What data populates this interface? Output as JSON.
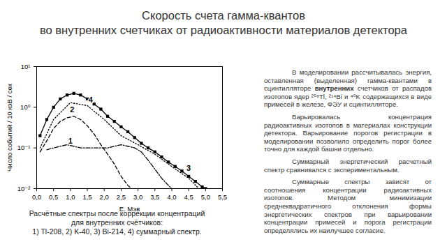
{
  "slide": {
    "title": [
      "Скорость счета гамма-квантов",
      "во внутренних счетчиках от радиоактивности материалов детектора"
    ],
    "paragraphs": [
      [
        {
          "text": "В моделировании рассчитывалась энергия, оставленная (выделенная) гамма-квантами в сцинтилляторе "
        },
        {
          "text": "внутренних",
          "bold": true
        },
        {
          "text": " счетчиков от распадов изотопов ядер ²⁰⁸Tl, ²¹⁴Bi и ⁴⁰K содержащихся в виде примесей в железе, ФЭУ и сцинтилляторе."
        }
      ],
      [
        {
          "text": "Варьировалась концентрация радиоактивных изотопов в материалах конструкции детектора. Варьирование порогов регистрации в моделировании позволило определить порог более точно для каждой башни отдельно."
        }
      ],
      [
        {
          "text": "Суммарный энергетический расчетный спектр сравнивался с экспериментальным."
        }
      ],
      [
        {
          "text": "Суммарные спектры зависят от соотношения концентрации радиоактивных изотопов. Методом минимизации среднеквадратичного отклонения формы энергетических спектров при варьировании концентрации примесей и порога регистрации определялись их наилучшее согласие."
        }
      ]
    ],
    "caption": [
      "Расчётные спектры после коррекции концентраций",
      "для внутренних счётчиков:",
      "1) Tl-208, 2) K-40, 3) Bi-214, 4) суммарный спектр."
    ]
  },
  "chart_data": {
    "type": "line",
    "x_label": "E. Мэв",
    "y_label": "Число событий / 10 кэВ / сек",
    "log": "y",
    "grid": false,
    "xlim": [
      0,
      5.5
    ],
    "xticks": [
      {
        "value": 0,
        "label": "0,0"
      },
      {
        "value": 0.5,
        "label": "0,5"
      },
      {
        "value": 1,
        "label": "1,0"
      },
      {
        "value": 1.5,
        "label": "1,5"
      },
      {
        "value": 2,
        "label": "2,0"
      },
      {
        "value": 2.5,
        "label": "2,5"
      },
      {
        "value": 3,
        "label": "3,0"
      },
      {
        "value": 3.5,
        "label": "3,5"
      },
      {
        "value": 4,
        "label": "4,0"
      },
      {
        "value": 4.5,
        "label": "4,5"
      },
      {
        "value": 5,
        "label": "5,0"
      },
      {
        "value": 5.5,
        "label": "5,5"
      }
    ],
    "ylim": [
      0.01,
      10
    ],
    "yticks": [
      {
        "value": 0.01,
        "label": "10⁻²"
      },
      {
        "value": 0.1,
        "label": "10⁻¹"
      },
      {
        "value": 1,
        "label": "10⁰"
      },
      {
        "value": 10,
        "label": "10¹"
      }
    ],
    "series": [
      {
        "name": "1",
        "color": "#000000",
        "line_style": "dashdot",
        "label_x": 1.0,
        "label_y": 0.145,
        "x": [
          0.3,
          0.5,
          0.7,
          0.9,
          1.1,
          1.3,
          1.5,
          1.7,
          1.9,
          2.1,
          2.3,
          2.5,
          2.7,
          2.9,
          3.1,
          3.3,
          3.5,
          3.7,
          3.9,
          4.0
        ],
        "values": [
          0.09,
          0.1,
          0.11,
          0.12,
          0.11,
          0.1,
          0.1,
          0.1,
          0.1,
          0.1,
          0.11,
          0.12,
          0.11,
          0.1,
          0.08,
          0.05,
          0.03,
          0.018,
          0.012,
          0.01
        ]
      },
      {
        "name": "2",
        "color": "#000000",
        "line_style": "dashed",
        "label_x": 1.05,
        "label_y": 0.85,
        "x": [
          0.1,
          0.3,
          0.5,
          0.7,
          0.9,
          1.1,
          1.3,
          1.5,
          1.7,
          1.9,
          2.1,
          2.3,
          2.5,
          2.7,
          2.8
        ],
        "values": [
          0.08,
          0.15,
          0.3,
          0.45,
          0.55,
          0.6,
          0.5,
          0.35,
          0.22,
          0.12,
          0.07,
          0.04,
          0.02,
          0.012,
          0.01
        ]
      },
      {
        "name": "3",
        "color": "#000000",
        "line_style": "dotted",
        "label_x": 4.5,
        "label_y": 0.032,
        "x": [
          0.1,
          0.5,
          1.0,
          1.5,
          2.0,
          2.5,
          3.0,
          3.5,
          4.0,
          4.5,
          4.8
        ],
        "values": [
          0.1,
          0.5,
          1.3,
          1.1,
          0.5,
          0.2,
          0.12,
          0.07,
          0.035,
          0.018,
          0.01
        ]
      },
      {
        "name": "4",
        "color": "#000000",
        "line_style": "solid",
        "marker": "square",
        "label_x": 1.6,
        "label_y": 1.5,
        "x": [
          0.1,
          0.3,
          0.5,
          0.7,
          0.9,
          1.1,
          1.3,
          1.5,
          1.7,
          1.9,
          2.1,
          2.3,
          2.5,
          2.7,
          2.9,
          3.1,
          3.3,
          3.5,
          3.7,
          3.9,
          4.1,
          4.3,
          4.5,
          4.7,
          4.9,
          5.0
        ],
        "values": [
          0.2,
          0.5,
          1.0,
          1.6,
          2.0,
          2.2,
          2.0,
          1.6,
          1.2,
          0.9,
          0.6,
          0.45,
          0.33,
          0.25,
          0.18,
          0.13,
          0.1,
          0.08,
          0.06,
          0.045,
          0.035,
          0.027,
          0.02,
          0.015,
          0.011,
          0.01
        ]
      }
    ]
  }
}
